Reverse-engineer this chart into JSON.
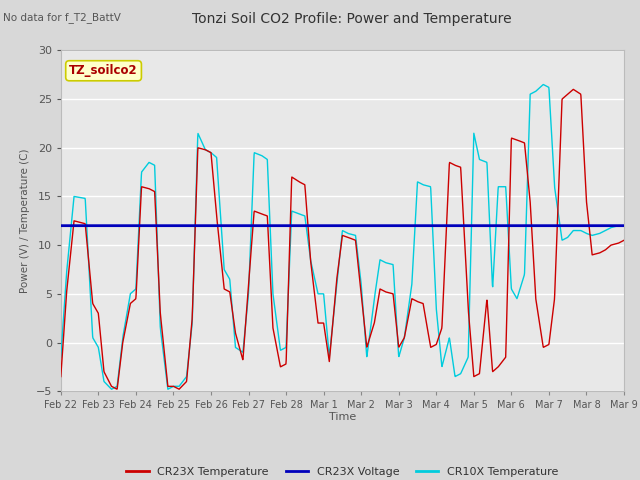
{
  "title": "Tonzi Soil CO2 Profile: Power and Temperature",
  "no_data_text": "No data for f_T2_BattV",
  "ylabel": "Power (V) / Temperature (C)",
  "xlabel": "Time",
  "ylim": [
    -5,
    30
  ],
  "yticks": [
    -5,
    0,
    5,
    10,
    15,
    20,
    25,
    30
  ],
  "bg_color": "#d8d8d8",
  "plot_bg_color": "#e8e8e8",
  "grid_color": "#ffffff",
  "voltage_value": 12.0,
  "legend_labels": [
    "CR23X Temperature",
    "CR23X Voltage",
    "CR10X Temperature"
  ],
  "cr23x_color": "#cc0000",
  "cr10x_color": "#00ccdd",
  "voltage_color": "#0000bb",
  "annotation_text": "TZ_soilco2",
  "annotation_fg": "#aa0000",
  "annotation_bg": "#ffffcc",
  "annotation_edge": "#cccc00",
  "x_tick_labels": [
    "Feb 22",
    "Feb 23",
    "Feb 24",
    "Feb 25",
    "Feb 26",
    "Feb 27",
    "Feb 28",
    "Mar 1",
    "Mar 2",
    "Mar 3",
    "Mar 4",
    "Mar 5",
    "Mar 6",
    "Mar 7",
    "Mar 8",
    "Mar 9"
  ],
  "cr23x_key_x": [
    0.0,
    0.15,
    0.35,
    0.65,
    0.85,
    1.0,
    1.15,
    1.35,
    1.5,
    1.65,
    1.85,
    2.0,
    2.15,
    2.35,
    2.5,
    2.65,
    2.85,
    3.0,
    3.15,
    3.35,
    3.5,
    3.65,
    3.85,
    4.0,
    4.15,
    4.35,
    4.5,
    4.65,
    4.85,
    5.0,
    5.15,
    5.35,
    5.5,
    5.65,
    5.85,
    6.0,
    6.15,
    6.35,
    6.5,
    6.65,
    6.85,
    7.0,
    7.15,
    7.35,
    7.5,
    7.65,
    7.85,
    8.0,
    8.15,
    8.35,
    8.5,
    8.65,
    8.85,
    9.0,
    9.15,
    9.35,
    9.5,
    9.65,
    9.85,
    10.0,
    10.15,
    10.35,
    10.5,
    10.65,
    10.85,
    11.0,
    11.15,
    11.35,
    11.5,
    11.65,
    11.85,
    12.0,
    12.15,
    12.35,
    12.5,
    12.65,
    12.85,
    13.0,
    13.15,
    13.35,
    13.5,
    13.65,
    13.85,
    14.0,
    14.15,
    14.35,
    14.5,
    14.65,
    14.85,
    15.0
  ],
  "cr23x_key_y": [
    -3.5,
    5.0,
    12.5,
    12.2,
    4.0,
    3.0,
    -3.0,
    -4.5,
    -4.8,
    0.0,
    4.0,
    4.5,
    16.0,
    15.8,
    15.5,
    3.0,
    -4.5,
    -4.5,
    -4.8,
    -4.0,
    2.5,
    20.0,
    19.8,
    19.5,
    13.0,
    5.5,
    5.2,
    1.0,
    -1.8,
    6.0,
    13.5,
    13.2,
    13.0,
    1.5,
    -2.5,
    -2.2,
    17.0,
    16.5,
    16.2,
    8.5,
    2.0,
    2.0,
    -2.0,
    6.5,
    11.0,
    10.8,
    10.5,
    5.0,
    -0.5,
    2.0,
    5.5,
    5.2,
    5.0,
    -0.5,
    0.5,
    4.5,
    4.2,
    4.0,
    -0.5,
    -0.2,
    1.5,
    18.5,
    18.2,
    18.0,
    3.5,
    -3.5,
    -3.2,
    4.5,
    -3.0,
    -2.5,
    -1.5,
    21.0,
    20.8,
    20.5,
    14.5,
    4.5,
    -0.5,
    -0.2,
    4.5,
    25.0,
    25.5,
    26.0,
    25.5,
    14.5,
    9.0,
    9.2,
    9.5,
    10.0,
    10.2,
    10.5
  ],
  "cr10x_key_x": [
    0.0,
    0.15,
    0.35,
    0.65,
    0.85,
    1.0,
    1.15,
    1.35,
    1.5,
    1.65,
    1.85,
    2.0,
    2.15,
    2.35,
    2.5,
    2.65,
    2.85,
    3.0,
    3.15,
    3.35,
    3.5,
    3.65,
    3.85,
    4.0,
    4.15,
    4.35,
    4.5,
    4.65,
    4.85,
    5.0,
    5.15,
    5.35,
    5.5,
    5.65,
    5.85,
    6.0,
    6.15,
    6.35,
    6.5,
    6.65,
    6.85,
    7.0,
    7.15,
    7.35,
    7.5,
    7.65,
    7.85,
    8.0,
    8.15,
    8.35,
    8.5,
    8.65,
    8.85,
    9.0,
    9.15,
    9.35,
    9.5,
    9.65,
    9.85,
    10.0,
    10.15,
    10.35,
    10.5,
    10.65,
    10.85,
    11.0,
    11.15,
    11.35,
    11.5,
    11.65,
    11.85,
    12.0,
    12.15,
    12.35,
    12.5,
    12.65,
    12.85,
    13.0,
    13.15,
    13.35,
    13.5,
    13.65,
    13.85,
    14.0,
    14.15,
    14.35,
    14.5,
    14.65,
    14.85,
    15.0
  ],
  "cr10x_key_y": [
    -1.5,
    7.0,
    15.0,
    14.8,
    0.5,
    -0.5,
    -4.0,
    -4.8,
    -4.5,
    0.5,
    5.0,
    5.5,
    17.5,
    18.5,
    18.2,
    1.5,
    -4.8,
    -4.5,
    -4.5,
    -3.5,
    2.0,
    21.5,
    19.8,
    19.5,
    19.0,
    7.5,
    6.5,
    -0.5,
    -1.0,
    5.0,
    19.5,
    19.2,
    18.8,
    5.0,
    -0.8,
    -0.5,
    13.5,
    13.2,
    13.0,
    8.5,
    5.0,
    5.0,
    -1.5,
    6.0,
    11.5,
    11.2,
    11.0,
    6.0,
    -1.5,
    4.5,
    8.5,
    8.2,
    8.0,
    -1.5,
    0.5,
    6.0,
    16.5,
    16.2,
    16.0,
    3.5,
    -2.5,
    0.5,
    -3.5,
    -3.2,
    -1.5,
    21.5,
    18.8,
    18.5,
    5.5,
    16.0,
    16.0,
    5.5,
    4.5,
    7.0,
    25.5,
    25.8,
    26.5,
    26.2,
    16.0,
    10.5,
    10.8,
    11.5,
    11.5,
    11.2,
    11.0,
    11.2,
    11.5,
    11.8,
    12.0,
    12.0
  ]
}
